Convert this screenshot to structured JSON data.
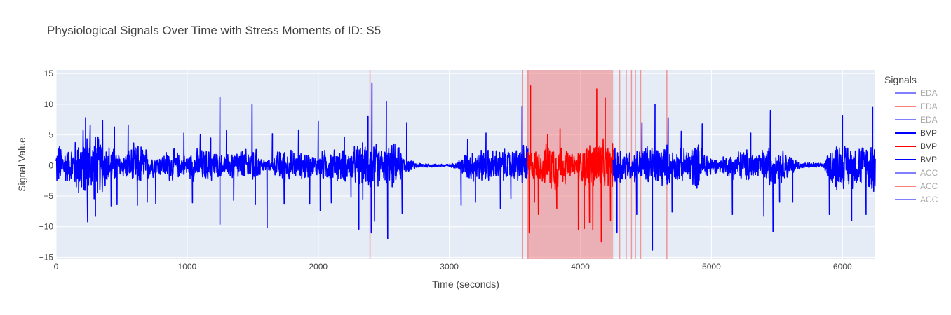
{
  "chart_data": {
    "type": "line",
    "title": "Physiological Signals Over Time with Stress Moments of ID: S5",
    "xlabel": "Time (seconds)",
    "ylabel": "Signal Value",
    "xlim": [
      0,
      6250
    ],
    "ylim": [
      -15.3,
      15.6
    ],
    "x_ticks": [
      0,
      1000,
      2000,
      3000,
      4000,
      5000,
      6000
    ],
    "y_ticks": [
      -15,
      -10,
      -5,
      0,
      5,
      10,
      15
    ],
    "grid": true,
    "legend_title": "Signals",
    "legend_position": "right",
    "legend": [
      {
        "name": "EDA",
        "color": "#0000ff",
        "visible": false
      },
      {
        "name": "EDA",
        "color": "#ff0000",
        "visible": false
      },
      {
        "name": "EDA",
        "color": "#0000ff",
        "visible": false
      },
      {
        "name": "BVP",
        "color": "#0000ff",
        "visible": true
      },
      {
        "name": "BVP",
        "color": "#ff0000",
        "visible": true
      },
      {
        "name": "BVP",
        "color": "#0000ff",
        "visible": true
      },
      {
        "name": "ACC",
        "color": "#0000ff",
        "visible": false
      },
      {
        "name": "ACC",
        "color": "#ff0000",
        "visible": false
      },
      {
        "name": "ACC",
        "color": "#0000ff",
        "visible": false
      }
    ],
    "colors": {
      "normal": "#0000ff",
      "stress": "#ff0000",
      "stress_band": "#f08080",
      "plot_bg": "#e5ecf6",
      "grid": "#ffffff"
    },
    "stress_band": [
      3600,
      4250
    ],
    "stress_lines": [
      2395,
      3560,
      3600,
      4300,
      4350,
      4390,
      4420,
      4460,
      4660
    ],
    "series": [
      {
        "name": "BVP",
        "color": "#0000ff",
        "segment": [
          0,
          3600
        ],
        "envelope": [
          [
            0,
            4
          ],
          [
            50,
            4
          ],
          [
            100,
            3
          ],
          [
            150,
            5
          ],
          [
            200,
            7
          ],
          [
            250,
            6
          ],
          [
            300,
            6
          ],
          [
            350,
            5
          ],
          [
            400,
            4
          ],
          [
            450,
            3
          ],
          [
            500,
            2
          ],
          [
            550,
            3
          ],
          [
            600,
            4
          ],
          [
            650,
            4
          ],
          [
            700,
            3
          ],
          [
            750,
            2
          ],
          [
            800,
            2
          ],
          [
            850,
            3
          ],
          [
            900,
            3
          ],
          [
            950,
            2
          ],
          [
            1000,
            2
          ],
          [
            1050,
            3
          ],
          [
            1100,
            3
          ],
          [
            1150,
            3
          ],
          [
            1200,
            3
          ],
          [
            1250,
            2
          ],
          [
            1300,
            2
          ],
          [
            1350,
            3
          ],
          [
            1400,
            3
          ],
          [
            1450,
            3
          ],
          [
            1500,
            4
          ],
          [
            1550,
            2
          ],
          [
            1600,
            1
          ],
          [
            1650,
            1
          ],
          [
            1700,
            3
          ],
          [
            1750,
            3
          ],
          [
            1800,
            3
          ],
          [
            1850,
            2
          ],
          [
            1900,
            3
          ],
          [
            1950,
            2
          ],
          [
            2000,
            2
          ],
          [
            2050,
            3
          ],
          [
            2100,
            3
          ],
          [
            2150,
            3
          ],
          [
            2200,
            3
          ],
          [
            2250,
            3
          ],
          [
            2300,
            4
          ],
          [
            2350,
            4
          ],
          [
            2400,
            5
          ],
          [
            2450,
            4
          ],
          [
            2500,
            3
          ],
          [
            2550,
            4
          ],
          [
            2600,
            4
          ],
          [
            2650,
            2
          ],
          [
            2700,
            1
          ],
          [
            2750,
            0.5
          ],
          [
            2800,
            0.5
          ],
          [
            2850,
            0.4
          ],
          [
            2900,
            0.3
          ],
          [
            2950,
            0.3
          ],
          [
            3000,
            0.3
          ],
          [
            3050,
            0.5
          ],
          [
            3100,
            2
          ],
          [
            3150,
            3
          ],
          [
            3200,
            3
          ],
          [
            3250,
            3
          ],
          [
            3300,
            3
          ],
          [
            3350,
            3
          ],
          [
            3400,
            3
          ],
          [
            3450,
            3
          ],
          [
            3500,
            3
          ],
          [
            3550,
            4
          ],
          [
            3600,
            4
          ]
        ],
        "spikes": [
          [
            225,
            7.8
          ],
          [
            240,
            -9.2
          ],
          [
            260,
            6.6
          ],
          [
            300,
            -8.3
          ],
          [
            355,
            7.3
          ],
          [
            420,
            -6.6
          ],
          [
            445,
            6.3
          ],
          [
            465,
            -6.4
          ],
          [
            550,
            6.6
          ],
          [
            620,
            -6.5
          ],
          [
            695,
            -6.0
          ],
          [
            760,
            -6.2
          ],
          [
            975,
            5.3
          ],
          [
            1040,
            -6.1
          ],
          [
            1100,
            5.0
          ],
          [
            1180,
            4.5
          ],
          [
            1250,
            11.1
          ],
          [
            1250,
            -9.6
          ],
          [
            1300,
            5.7
          ],
          [
            1355,
            -5.7
          ],
          [
            1495,
            10.0
          ],
          [
            1520,
            -6.4
          ],
          [
            1610,
            -10.2
          ],
          [
            1650,
            5.2
          ],
          [
            1740,
            -6.3
          ],
          [
            1850,
            5.8
          ],
          [
            1935,
            -6.3
          ],
          [
            2000,
            7.2
          ],
          [
            2015,
            -7.4
          ],
          [
            2100,
            -6.1
          ],
          [
            2200,
            4.6
          ],
          [
            2250,
            -5.2
          ],
          [
            2310,
            -10.4
          ],
          [
            2340,
            -5.5
          ],
          [
            2380,
            8.1
          ],
          [
            2410,
            13.5
          ],
          [
            2405,
            -11.0
          ],
          [
            2430,
            -9.1
          ],
          [
            2520,
            10.5
          ],
          [
            2530,
            -12.0
          ],
          [
            2640,
            -7.8
          ],
          [
            2675,
            7.0
          ],
          [
            3090,
            -6.5
          ],
          [
            3140,
            4.3
          ],
          [
            3200,
            -6.0
          ],
          [
            3280,
            5.3
          ],
          [
            3390,
            -7.0
          ],
          [
            3470,
            -5.4
          ],
          [
            3555,
            9.6
          ]
        ]
      },
      {
        "name": "BVP",
        "color": "#ff0000",
        "segment": [
          3600,
          4250
        ],
        "envelope": [
          [
            3600,
            3
          ],
          [
            3650,
            3
          ],
          [
            3700,
            3
          ],
          [
            3750,
            4
          ],
          [
            3800,
            5
          ],
          [
            3850,
            4
          ],
          [
            3900,
            3
          ],
          [
            3950,
            2
          ],
          [
            4000,
            3
          ],
          [
            4050,
            4
          ],
          [
            4100,
            5
          ],
          [
            4150,
            5
          ],
          [
            4200,
            4
          ],
          [
            4250,
            4
          ]
        ],
        "spikes": [
          [
            3620,
            13.0
          ],
          [
            3610,
            -11.0
          ],
          [
            3650,
            -6.0
          ],
          [
            3680,
            -8.0
          ],
          [
            3750,
            5.0
          ],
          [
            3820,
            -7.0
          ],
          [
            3845,
            6.0
          ],
          [
            3985,
            -10.5
          ],
          [
            4030,
            -10.3
          ],
          [
            4070,
            -9.3
          ],
          [
            4095,
            -10.5
          ],
          [
            4125,
            12.5
          ],
          [
            4160,
            -12.5
          ],
          [
            4190,
            11.0
          ],
          [
            4230,
            -9.0
          ]
        ]
      },
      {
        "name": "BVP",
        "color": "#0000ff",
        "segment": [
          4250,
          6250
        ],
        "envelope": [
          [
            4250,
            4
          ],
          [
            4300,
            4
          ],
          [
            4350,
            3
          ],
          [
            4400,
            3
          ],
          [
            4450,
            3
          ],
          [
            4500,
            4
          ],
          [
            4550,
            4
          ],
          [
            4600,
            4
          ],
          [
            4650,
            4
          ],
          [
            4700,
            3
          ],
          [
            4750,
            3
          ],
          [
            4800,
            3
          ],
          [
            4850,
            4
          ],
          [
            4900,
            4
          ],
          [
            4950,
            3
          ],
          [
            5000,
            2
          ],
          [
            5050,
            1
          ],
          [
            5100,
            2
          ],
          [
            5150,
            2
          ],
          [
            5200,
            3
          ],
          [
            5250,
            3
          ],
          [
            5300,
            3
          ],
          [
            5350,
            3
          ],
          [
            5400,
            3
          ],
          [
            5450,
            4
          ],
          [
            5500,
            3
          ],
          [
            5550,
            3
          ],
          [
            5600,
            2
          ],
          [
            5650,
            1
          ],
          [
            5700,
            0.5
          ],
          [
            5750,
            0.5
          ],
          [
            5800,
            0.5
          ],
          [
            5850,
            0.3
          ],
          [
            5900,
            3
          ],
          [
            5950,
            5
          ],
          [
            6000,
            4
          ],
          [
            6050,
            4
          ],
          [
            6100,
            4
          ],
          [
            6150,
            4
          ],
          [
            6200,
            5
          ],
          [
            6250,
            5
          ]
        ],
        "spikes": [
          [
            4280,
            -11.0
          ],
          [
            4430,
            -8.0
          ],
          [
            4470,
            7.0
          ],
          [
            4550,
            -13.8
          ],
          [
            4570,
            10.0
          ],
          [
            4670,
            7.8
          ],
          [
            4700,
            -7.6
          ],
          [
            4770,
            5.6
          ],
          [
            4930,
            6.8
          ],
          [
            5160,
            -8.0
          ],
          [
            5300,
            5.3
          ],
          [
            5400,
            -8.3
          ],
          [
            5450,
            9.0
          ],
          [
            5470,
            -10.8
          ],
          [
            5520,
            -6.0
          ],
          [
            5620,
            -6.0
          ],
          [
            5900,
            -8.0
          ],
          [
            6000,
            8.2
          ],
          [
            6070,
            -9.0
          ],
          [
            6180,
            -8.0
          ],
          [
            6230,
            9.5
          ]
        ]
      }
    ]
  }
}
